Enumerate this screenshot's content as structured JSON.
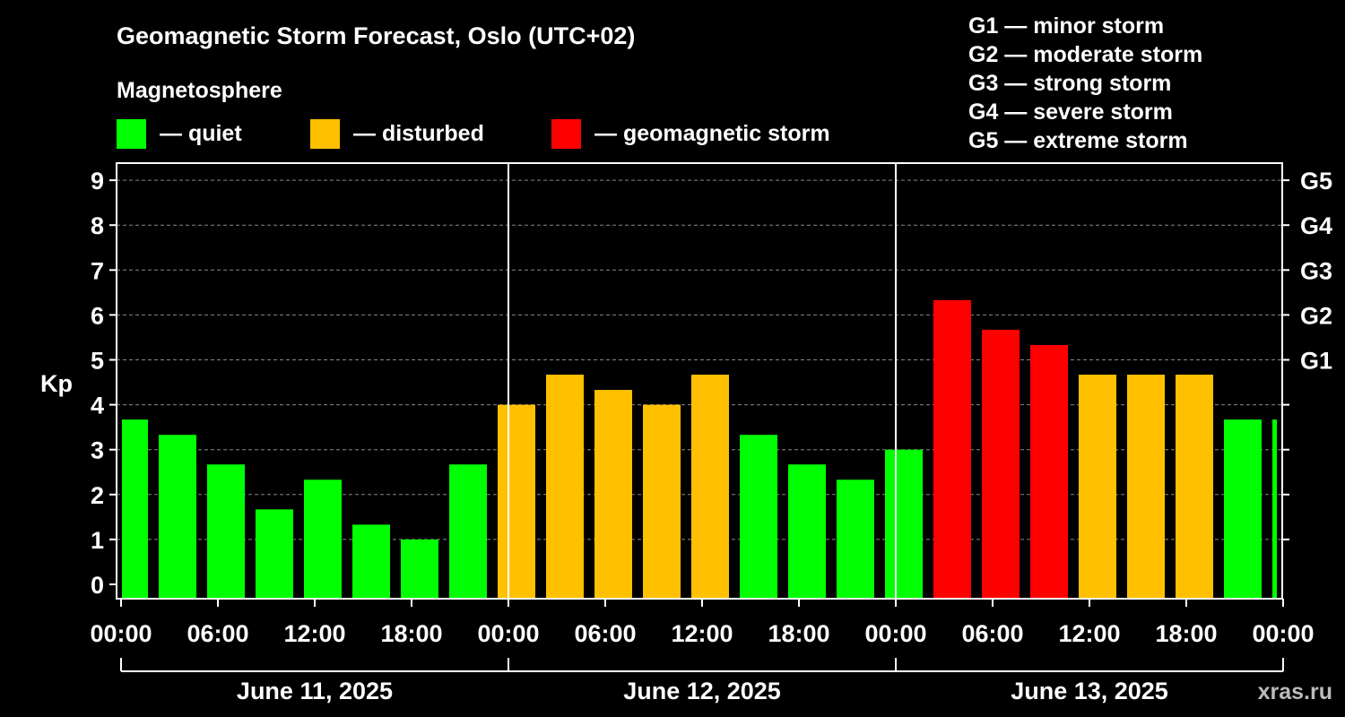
{
  "chart_data": {
    "type": "bar",
    "title": "Geomagnetic Storm Forecast, Oslo (UTC+02)",
    "subtitle": "Magnetosphere",
    "ylabel": "Kp",
    "ylim": [
      -0.3,
      9.4
    ],
    "y_ticks": [
      "0",
      "1",
      "2",
      "3",
      "4",
      "5",
      "6",
      "7",
      "8",
      "9"
    ],
    "right_ticks": [
      {
        "value": 5,
        "label": "G1"
      },
      {
        "value": 6,
        "label": "G2"
      },
      {
        "value": 7,
        "label": "G3"
      },
      {
        "value": 8,
        "label": "G4"
      },
      {
        "value": 9,
        "label": "G5"
      }
    ],
    "x_tick_labels": [
      "00:00",
      "06:00",
      "12:00",
      "18:00",
      "00:00",
      "06:00",
      "12:00",
      "18:00",
      "00:00",
      "06:00",
      "12:00",
      "18:00",
      "00:00"
    ],
    "x_tick_hours": [
      0,
      6,
      12,
      18,
      24,
      30,
      36,
      42,
      48,
      54,
      60,
      66,
      72
    ],
    "days": [
      {
        "label": "June 11, 2025",
        "start_hour": 0,
        "end_hour": 24
      },
      {
        "label": "June 12, 2025",
        "start_hour": 24,
        "end_hour": 48
      },
      {
        "label": "June 13, 2025",
        "start_hour": 48,
        "end_hour": 72
      }
    ],
    "bars": [
      {
        "start_hour": -0.3,
        "end_hour": 2,
        "kp": 3.67,
        "level": "quiet"
      },
      {
        "start_hour": 2,
        "end_hour": 5,
        "kp": 3.33,
        "level": "quiet"
      },
      {
        "start_hour": 5,
        "end_hour": 8,
        "kp": 2.67,
        "level": "quiet"
      },
      {
        "start_hour": 8,
        "end_hour": 11,
        "kp": 1.67,
        "level": "quiet"
      },
      {
        "start_hour": 11,
        "end_hour": 14,
        "kp": 2.33,
        "level": "quiet"
      },
      {
        "start_hour": 14,
        "end_hour": 17,
        "kp": 1.33,
        "level": "quiet"
      },
      {
        "start_hour": 17,
        "end_hour": 20,
        "kp": 1.0,
        "level": "quiet"
      },
      {
        "start_hour": 20,
        "end_hour": 23,
        "kp": 2.67,
        "level": "quiet"
      },
      {
        "start_hour": 23,
        "end_hour": 26,
        "kp": 4.0,
        "level": "disturbed"
      },
      {
        "start_hour": 26,
        "end_hour": 29,
        "kp": 4.67,
        "level": "disturbed"
      },
      {
        "start_hour": 29,
        "end_hour": 32,
        "kp": 4.33,
        "level": "disturbed"
      },
      {
        "start_hour": 32,
        "end_hour": 35,
        "kp": 4.0,
        "level": "disturbed"
      },
      {
        "start_hour": 35,
        "end_hour": 38,
        "kp": 4.67,
        "level": "disturbed"
      },
      {
        "start_hour": 38,
        "end_hour": 41,
        "kp": 3.33,
        "level": "quiet"
      },
      {
        "start_hour": 41,
        "end_hour": 44,
        "kp": 2.67,
        "level": "quiet"
      },
      {
        "start_hour": 44,
        "end_hour": 47,
        "kp": 2.33,
        "level": "quiet"
      },
      {
        "start_hour": 47,
        "end_hour": 50,
        "kp": 3.0,
        "level": "quiet"
      },
      {
        "start_hour": 50,
        "end_hour": 53,
        "kp": 6.33,
        "level": "storm"
      },
      {
        "start_hour": 53,
        "end_hour": 56,
        "kp": 5.67,
        "level": "storm"
      },
      {
        "start_hour": 56,
        "end_hour": 59,
        "kp": 5.33,
        "level": "storm"
      },
      {
        "start_hour": 59,
        "end_hour": 62,
        "kp": 4.67,
        "level": "disturbed"
      },
      {
        "start_hour": 62,
        "end_hour": 65,
        "kp": 4.67,
        "level": "disturbed"
      },
      {
        "start_hour": 65,
        "end_hour": 68,
        "kp": 4.67,
        "level": "disturbed"
      },
      {
        "start_hour": 68,
        "end_hour": 71,
        "kp": 3.67,
        "level": "quiet"
      },
      {
        "start_hour": 71,
        "end_hour": 72,
        "kp": 3.67,
        "level": "quiet"
      }
    ],
    "legend": [
      {
        "key": "quiet",
        "label": "— quiet",
        "color": "#00ff00"
      },
      {
        "key": "disturbed",
        "label": "— disturbed",
        "color": "#ffc000"
      },
      {
        "key": "storm",
        "label": "— geomagnetic storm",
        "color": "#ff0000"
      }
    ],
    "g_scale": [
      "G1 — minor storm",
      "G2 — moderate storm",
      "G3 — strong storm",
      "G4 — severe storm",
      "G5 — extreme storm"
    ],
    "watermark": "xras.ru",
    "grid": true,
    "grid_color": "#888888",
    "background": "#000000"
  }
}
